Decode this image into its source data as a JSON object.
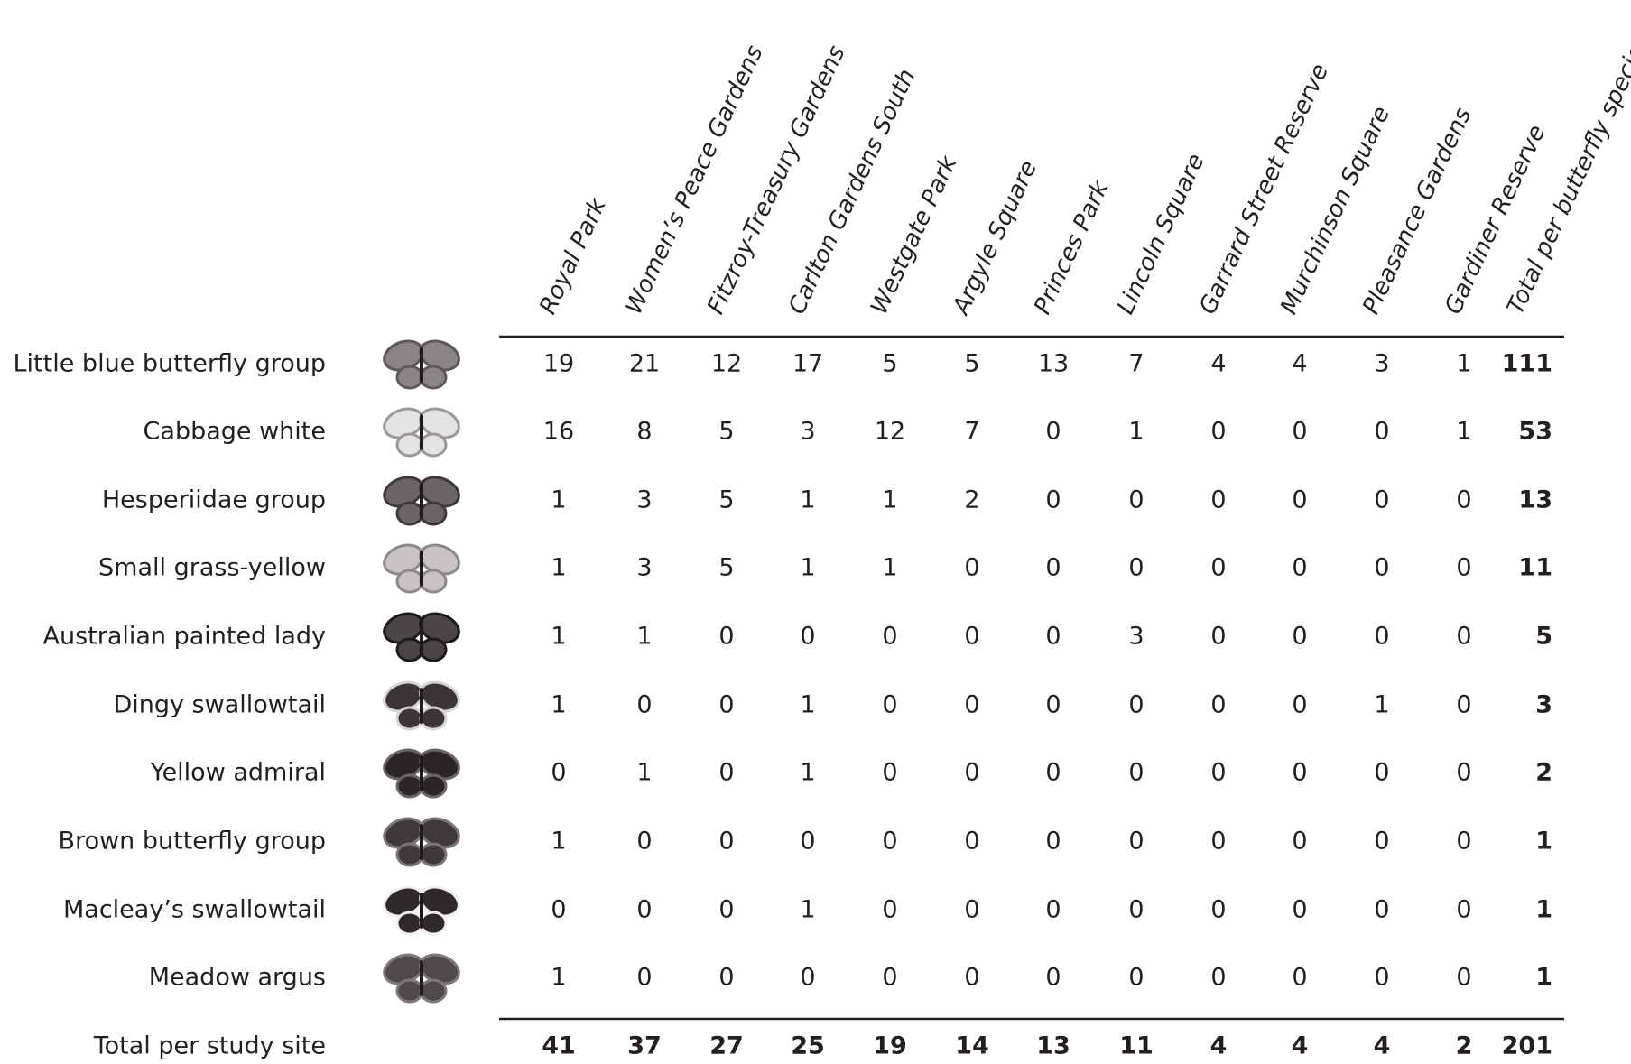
{
  "table": {
    "columns": [
      "Royal Park",
      "Women’s Peace Gardens",
      "Fitzroy-Treasury Gardens",
      "Carlton Gardens South",
      "Westgate Park",
      "Argyle Square",
      "Princes Park",
      "Lincoln Square",
      "Garrard Street Reserve",
      "Murchinson Square",
      "Pleasance Gardens",
      "Gardiner Reserve",
      "Total per butterfly species"
    ],
    "rows": [
      {
        "name": "Little blue butterfly group",
        "values": [
          19,
          21,
          12,
          17,
          5,
          5,
          13,
          7,
          4,
          4,
          3,
          1
        ],
        "total": 111
      },
      {
        "name": "Cabbage white",
        "values": [
          16,
          8,
          5,
          3,
          12,
          7,
          0,
          1,
          0,
          0,
          0,
          1
        ],
        "total": 53
      },
      {
        "name": "Hesperiidae group",
        "values": [
          1,
          3,
          5,
          1,
          1,
          2,
          0,
          0,
          0,
          0,
          0,
          0
        ],
        "total": 13
      },
      {
        "name": "Small grass-yellow",
        "values": [
          1,
          3,
          5,
          1,
          1,
          0,
          0,
          0,
          0,
          0,
          0,
          0
        ],
        "total": 11
      },
      {
        "name": "Australian painted lady",
        "values": [
          1,
          1,
          0,
          0,
          0,
          0,
          0,
          3,
          0,
          0,
          0,
          0
        ],
        "total": 5
      },
      {
        "name": "Dingy swallowtail",
        "values": [
          1,
          0,
          0,
          1,
          0,
          0,
          0,
          0,
          0,
          0,
          1,
          0
        ],
        "total": 3
      },
      {
        "name": "Yellow admiral",
        "values": [
          0,
          1,
          0,
          1,
          0,
          0,
          0,
          0,
          0,
          0,
          0,
          0
        ],
        "total": 2
      },
      {
        "name": "Brown butterfly group",
        "values": [
          1,
          0,
          0,
          0,
          0,
          0,
          0,
          0,
          0,
          0,
          0,
          0
        ],
        "total": 1
      },
      {
        "name": "Macleay’s swallowtail",
        "values": [
          0,
          0,
          0,
          1,
          0,
          0,
          0,
          0,
          0,
          0,
          0,
          0
        ],
        "total": 1
      },
      {
        "name": "Meadow argus",
        "values": [
          1,
          0,
          0,
          0,
          0,
          0,
          0,
          0,
          0,
          0,
          0,
          0
        ],
        "total": 1
      }
    ],
    "footer": {
      "label": "Total per study site",
      "values": [
        41,
        37,
        27,
        25,
        19,
        14,
        13,
        11,
        4,
        4,
        4,
        2
      ],
      "total": 201
    }
  }
}
